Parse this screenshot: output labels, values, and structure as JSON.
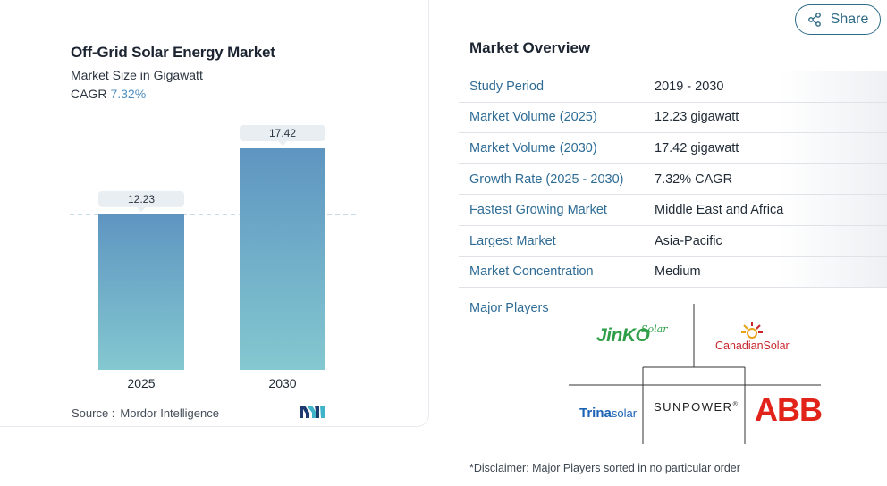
{
  "chart": {
    "title": "Off-Grid Solar Energy Market",
    "subtitle": "Market Size in Gigawatt",
    "cagr_label": "CAGR",
    "cagr_value": "7.32%",
    "source_label": "Source :",
    "source_value": "Mordor Intelligence"
  },
  "chart_data": {
    "type": "bar",
    "categories": [
      "2025",
      "2030"
    ],
    "values": [
      12.23,
      17.42
    ],
    "data_labels": [
      "12.23",
      "17.42"
    ],
    "title": "Off-Grid Solar Energy Market",
    "subtitle": "Market Size in Gigawatt",
    "xlabel": "",
    "ylabel": "",
    "ylim": [
      0,
      17.42
    ],
    "reference_line": "dashed at 2025 value",
    "colors": {
      "bar_top": "#5e95c1",
      "bar_bottom": "#84c8d0",
      "label_bg": "#e8eef2",
      "dash": "#8fb4cc"
    }
  },
  "share": {
    "label": "Share",
    "icon": "share-icon"
  },
  "overview": {
    "title": "Market Overview",
    "rows": [
      {
        "key": "Study Period",
        "value": "2019 - 2030"
      },
      {
        "key": "Market Volume (2025)",
        "value": "12.23 gigawatt"
      },
      {
        "key": "Market Volume (2030)",
        "value": "17.42 gigawatt"
      },
      {
        "key": "Growth Rate (2025 - 2030)",
        "value": "7.32% CAGR"
      },
      {
        "key": "Fastest Growing Market",
        "value": "Middle East and Africa"
      },
      {
        "key": "Largest Market",
        "value": "Asia-Pacific"
      },
      {
        "key": "Market Concentration",
        "value": "Medium"
      }
    ],
    "players_label": "Major Players",
    "players": {
      "jinko_main": "JinKO",
      "jinko_script": "Solar",
      "canadian": "CanadianSolar",
      "trina_main": "Trina",
      "trina_sub": "solar",
      "sunpower": "SUNPOWER",
      "sunpower_mark": "®",
      "abb": "ABB"
    },
    "disclaimer": "*Disclaimer: Major Players sorted in no particular order"
  },
  "colors": {
    "accent": "#2f6c95",
    "share_border": "#2d6a86",
    "jinko_green": "#2e9e48",
    "canadian_red": "#c8262d",
    "abb_red": "#e2231a",
    "trina_blue": "#1b63b5"
  }
}
